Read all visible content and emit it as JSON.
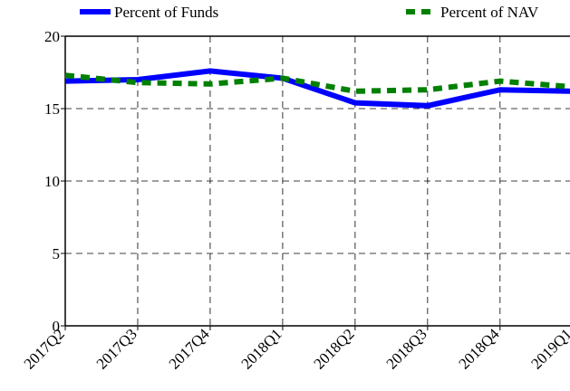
{
  "chart_data": {
    "type": "line",
    "categories": [
      "2017Q2",
      "2017Q3",
      "2017Q4",
      "2018Q1",
      "2018Q2",
      "2018Q3",
      "2018Q4",
      "2019Q1"
    ],
    "series": [
      {
        "name": "Percent of Funds",
        "color": "#0000ff",
        "style": "solid",
        "values": [
          16.9,
          17.0,
          17.6,
          17.1,
          15.4,
          15.2,
          16.3,
          16.2
        ]
      },
      {
        "name": "Percent of NAV",
        "color": "#008000",
        "style": "dotted",
        "values": [
          17.3,
          16.8,
          16.7,
          17.1,
          16.2,
          16.3,
          16.9,
          16.5
        ]
      }
    ],
    "ylim": [
      0,
      20
    ],
    "yticks": [
      0,
      5,
      10,
      15,
      20
    ],
    "grid": true
  }
}
